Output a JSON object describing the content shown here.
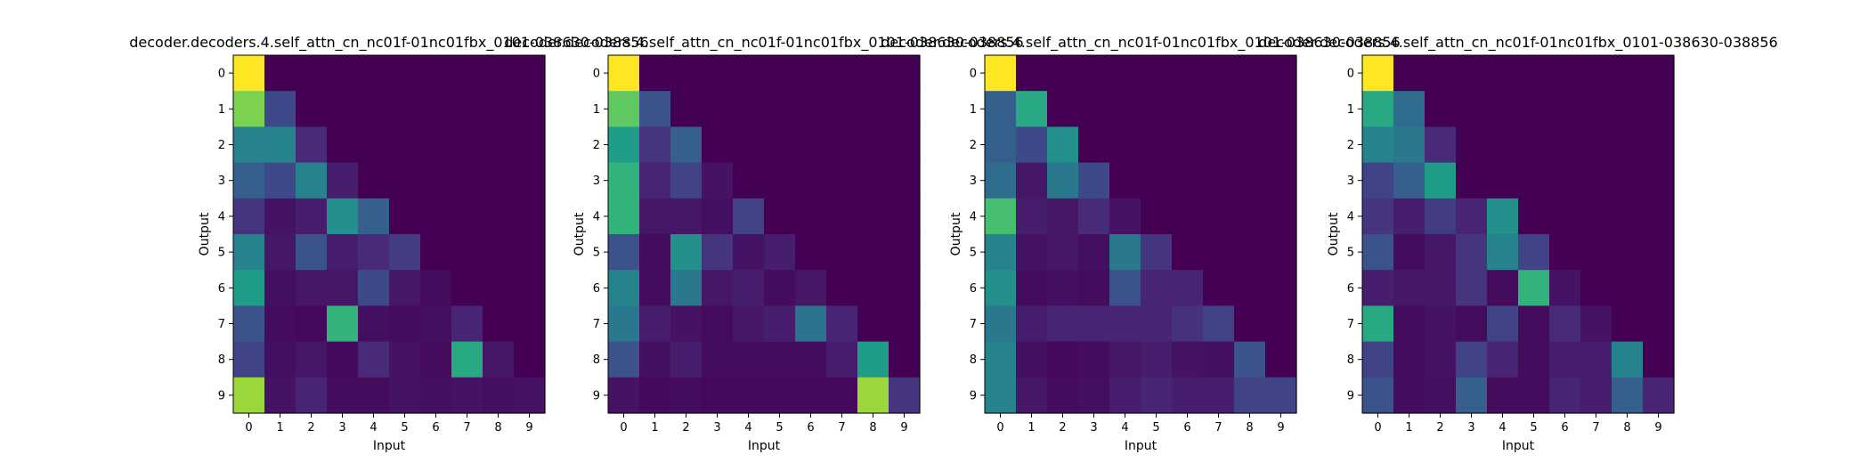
{
  "chart_data": [
    {
      "type": "heatmap",
      "title": "decoder.decoders.4.self_attn_cn_nc01f-01nc01fbx_0101-038630-038856",
      "xlabel": "Input",
      "ylabel": "Output",
      "x_ticks": [
        "0",
        "1",
        "2",
        "3",
        "4",
        "5",
        "6",
        "7",
        "8",
        "9"
      ],
      "y_ticks": [
        "0",
        "1",
        "2",
        "3",
        "4",
        "5",
        "6",
        "7",
        "8",
        "9"
      ],
      "colormap": "viridis",
      "vrange": [
        0,
        1
      ],
      "values": [
        [
          1.0,
          0,
          0,
          0,
          0,
          0,
          0,
          0,
          0,
          0
        ],
        [
          0.8,
          0.22,
          0,
          0,
          0,
          0,
          0,
          0,
          0,
          0
        ],
        [
          0.45,
          0.45,
          0.12,
          0,
          0,
          0,
          0,
          0,
          0,
          0
        ],
        [
          0.3,
          0.22,
          0.45,
          0.08,
          0,
          0,
          0,
          0,
          0,
          0
        ],
        [
          0.15,
          0.05,
          0.08,
          0.5,
          0.3,
          0,
          0,
          0,
          0,
          0
        ],
        [
          0.45,
          0.06,
          0.25,
          0.08,
          0.12,
          0.18,
          0,
          0,
          0,
          0
        ],
        [
          0.55,
          0.04,
          0.06,
          0.06,
          0.22,
          0.06,
          0.03,
          0,
          0,
          0
        ],
        [
          0.25,
          0.03,
          0.02,
          0.65,
          0.04,
          0.03,
          0.04,
          0.1,
          0,
          0
        ],
        [
          0.2,
          0.04,
          0.06,
          0.02,
          0.12,
          0.05,
          0.03,
          0.6,
          0.06,
          0
        ],
        [
          0.85,
          0.05,
          0.1,
          0.03,
          0.03,
          0.05,
          0.04,
          0.05,
          0.04,
          0.05
        ]
      ]
    },
    {
      "type": "heatmap",
      "title": "decoder.decoders.4.self_attn_cn_nc01f-01nc01fbx_0101-038630-038856",
      "xlabel": "Input",
      "ylabel": "Output",
      "x_ticks": [
        "0",
        "1",
        "2",
        "3",
        "4",
        "5",
        "6",
        "7",
        "8",
        "9"
      ],
      "y_ticks": [
        "0",
        "1",
        "2",
        "3",
        "4",
        "5",
        "6",
        "7",
        "8",
        "9"
      ],
      "colormap": "viridis",
      "vrange": [
        0,
        1
      ],
      "values": [
        [
          1.0,
          0,
          0,
          0,
          0,
          0,
          0,
          0,
          0,
          0
        ],
        [
          0.75,
          0.25,
          0,
          0,
          0,
          0,
          0,
          0,
          0,
          0
        ],
        [
          0.55,
          0.15,
          0.3,
          0,
          0,
          0,
          0,
          0,
          0,
          0
        ],
        [
          0.65,
          0.1,
          0.2,
          0.05,
          0,
          0,
          0,
          0,
          0,
          0
        ],
        [
          0.65,
          0.06,
          0.06,
          0.04,
          0.2,
          0,
          0,
          0,
          0,
          0
        ],
        [
          0.25,
          0.03,
          0.5,
          0.15,
          0.05,
          0.08,
          0,
          0,
          0,
          0
        ],
        [
          0.45,
          0.03,
          0.4,
          0.06,
          0.08,
          0.03,
          0.06,
          0,
          0,
          0
        ],
        [
          0.4,
          0.08,
          0.05,
          0.03,
          0.06,
          0.08,
          0.38,
          0.1,
          0,
          0
        ],
        [
          0.25,
          0.04,
          0.08,
          0.03,
          0.03,
          0.03,
          0.03,
          0.08,
          0.55,
          0
        ],
        [
          0.05,
          0.02,
          0.03,
          0.02,
          0.02,
          0.02,
          0.02,
          0.02,
          0.85,
          0.15
        ]
      ]
    },
    {
      "type": "heatmap",
      "title": "decoder.decoders.4.self_attn_cn_nc01f-01nc01fbx_0101-038630-038856",
      "xlabel": "Input",
      "ylabel": "Output",
      "x_ticks": [
        "0",
        "1",
        "2",
        "3",
        "4",
        "5",
        "6",
        "7",
        "8",
        "9"
      ],
      "y_ticks": [
        "0",
        "1",
        "2",
        "3",
        "4",
        "5",
        "6",
        "7",
        "8",
        "9"
      ],
      "colormap": "viridis",
      "vrange": [
        0,
        1
      ],
      "values": [
        [
          1.0,
          0,
          0,
          0,
          0,
          0,
          0,
          0,
          0,
          0
        ],
        [
          0.3,
          0.6,
          0,
          0,
          0,
          0,
          0,
          0,
          0,
          0
        ],
        [
          0.3,
          0.22,
          0.5,
          0,
          0,
          0,
          0,
          0,
          0,
          0
        ],
        [
          0.35,
          0.06,
          0.4,
          0.22,
          0,
          0,
          0,
          0,
          0,
          0
        ],
        [
          0.7,
          0.08,
          0.06,
          0.12,
          0.05,
          0,
          0,
          0,
          0,
          0
        ],
        [
          0.45,
          0.05,
          0.06,
          0.04,
          0.4,
          0.15,
          0,
          0,
          0,
          0
        ],
        [
          0.5,
          0.03,
          0.04,
          0.03,
          0.25,
          0.1,
          0.1,
          0,
          0,
          0
        ],
        [
          0.4,
          0.08,
          0.1,
          0.1,
          0.1,
          0.1,
          0.14,
          0.2,
          0,
          0
        ],
        [
          0.45,
          0.04,
          0.02,
          0.03,
          0.06,
          0.08,
          0.05,
          0.04,
          0.25,
          0
        ],
        [
          0.45,
          0.06,
          0.03,
          0.04,
          0.08,
          0.1,
          0.08,
          0.08,
          0.2,
          0.2
        ]
      ]
    },
    {
      "type": "heatmap",
      "title": "decoder.decoders.4.self_attn_cn_nc01f-01nc01fbx_0101-038630-038856",
      "xlabel": "Input",
      "ylabel": "Output",
      "x_ticks": [
        "0",
        "1",
        "2",
        "3",
        "4",
        "5",
        "6",
        "7",
        "8",
        "9"
      ],
      "y_ticks": [
        "0",
        "1",
        "2",
        "3",
        "4",
        "5",
        "6",
        "7",
        "8",
        "9"
      ],
      "colormap": "viridis",
      "vrange": [
        0,
        1
      ],
      "values": [
        [
          1.0,
          0,
          0,
          0,
          0,
          0,
          0,
          0,
          0,
          0
        ],
        [
          0.6,
          0.35,
          0,
          0,
          0,
          0,
          0,
          0,
          0,
          0
        ],
        [
          0.45,
          0.4,
          0.12,
          0,
          0,
          0,
          0,
          0,
          0,
          0
        ],
        [
          0.2,
          0.3,
          0.55,
          0,
          0,
          0,
          0,
          0,
          0,
          0
        ],
        [
          0.15,
          0.08,
          0.18,
          0.1,
          0.5,
          0,
          0,
          0,
          0,
          0
        ],
        [
          0.25,
          0.03,
          0.06,
          0.15,
          0.45,
          0.2,
          0,
          0,
          0,
          0
        ],
        [
          0.08,
          0.06,
          0.06,
          0.15,
          0.03,
          0.65,
          0.05,
          0,
          0,
          0
        ],
        [
          0.6,
          0.03,
          0.05,
          0.03,
          0.2,
          0.03,
          0.12,
          0.05,
          0,
          0
        ],
        [
          0.2,
          0.03,
          0.05,
          0.2,
          0.1,
          0.03,
          0.08,
          0.08,
          0.45,
          0
        ],
        [
          0.25,
          0.03,
          0.04,
          0.3,
          0.03,
          0.03,
          0.1,
          0.08,
          0.3,
          0.1
        ]
      ]
    }
  ]
}
